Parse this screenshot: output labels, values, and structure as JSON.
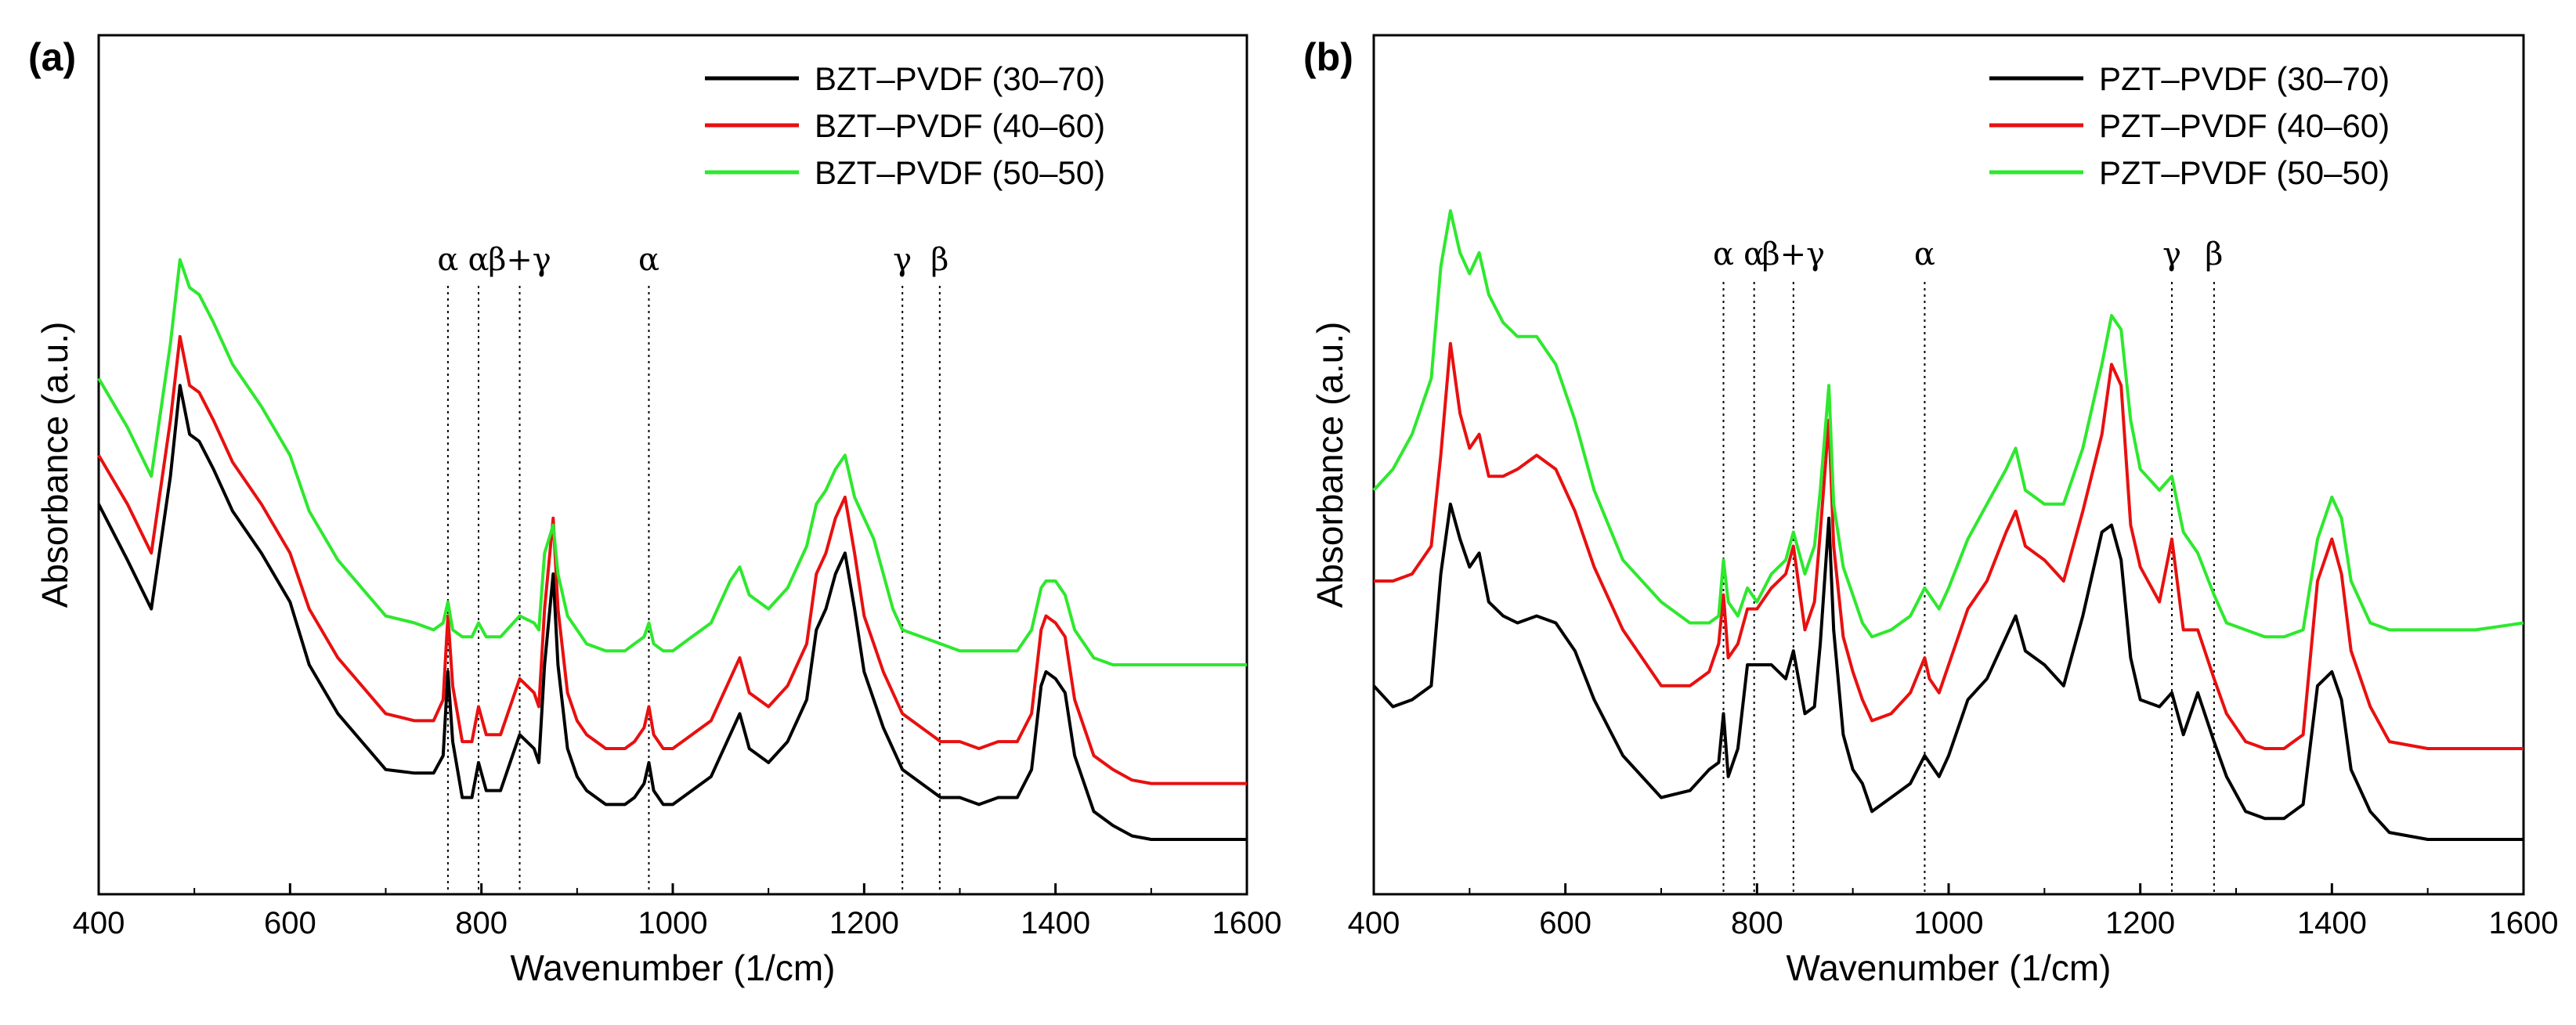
{
  "chart_data": [
    {
      "type": "line",
      "panel_label": "(a)",
      "xlabel": "Wavenumber (1/cm)",
      "ylabel": "Absorbance (a.u.)",
      "xlim": [
        400,
        1600
      ],
      "ylim": [
        0,
        100
      ],
      "x_ticks": [
        400,
        600,
        800,
        1000,
        1200,
        1400,
        1600
      ],
      "legend_position": "top-right",
      "annotations": [
        {
          "x": 765,
          "label": "α"
        },
        {
          "x": 797,
          "label": "α"
        },
        {
          "x": 840,
          "label": "β+γ"
        },
        {
          "x": 975,
          "label": "α"
        },
        {
          "x": 1240,
          "label": "γ"
        },
        {
          "x": 1279,
          "label": "β"
        }
      ],
      "series": [
        {
          "name": "BZT–PVDF (30–70)",
          "color": "#000000",
          "x": [
            400,
            430,
            455,
            475,
            485,
            495,
            505,
            520,
            540,
            570,
            600,
            620,
            650,
            700,
            730,
            750,
            760,
            765,
            770,
            780,
            790,
            797,
            805,
            820,
            840,
            855,
            860,
            866,
            875,
            880,
            890,
            900,
            910,
            930,
            950,
            960,
            970,
            975,
            980,
            990,
            1000,
            1020,
            1040,
            1060,
            1070,
            1080,
            1100,
            1120,
            1140,
            1150,
            1160,
            1170,
            1180,
            1190,
            1200,
            1210,
            1220,
            1230,
            1240,
            1260,
            1280,
            1300,
            1320,
            1340,
            1360,
            1375,
            1385,
            1390,
            1400,
            1410,
            1420,
            1430,
            1440,
            1460,
            1480,
            1500,
            1550,
            1600
          ],
          "y": [
            48,
            40,
            33,
            52,
            65,
            58,
            57,
            53,
            47,
            41,
            34,
            25,
            18,
            10,
            9.5,
            9.5,
            12,
            24,
            14,
            6,
            6,
            11,
            7,
            7,
            15,
            13,
            11,
            25,
            38,
            25,
            13,
            9,
            7,
            5,
            5,
            6,
            8,
            11,
            7,
            5,
            5,
            7,
            9,
            15,
            18,
            13,
            11,
            14,
            20,
            30,
            33,
            38,
            41,
            33,
            24,
            20,
            16,
            13,
            10,
            8,
            6,
            6,
            5,
            6,
            6,
            10,
            22,
            24,
            23,
            21,
            12,
            8,
            4,
            2,
            0.5,
            0,
            0,
            0
          ]
        },
        {
          "name": "BZT–PVDF (40–60)",
          "color": "#e81010",
          "x": [
            400,
            430,
            455,
            475,
            485,
            495,
            505,
            520,
            540,
            570,
            600,
            620,
            650,
            700,
            730,
            750,
            760,
            765,
            770,
            780,
            790,
            797,
            805,
            820,
            840,
            855,
            860,
            866,
            875,
            880,
            890,
            900,
            910,
            930,
            950,
            960,
            970,
            975,
            980,
            990,
            1000,
            1020,
            1040,
            1060,
            1070,
            1080,
            1100,
            1120,
            1140,
            1150,
            1160,
            1170,
            1180,
            1190,
            1200,
            1210,
            1220,
            1230,
            1240,
            1260,
            1280,
            1300,
            1320,
            1340,
            1360,
            1375,
            1385,
            1390,
            1400,
            1410,
            1420,
            1430,
            1440,
            1460,
            1480,
            1500,
            1550,
            1600
          ],
          "y": [
            55,
            48,
            41,
            60,
            72,
            65,
            64,
            60,
            54,
            48,
            41,
            33,
            26,
            18,
            17,
            17,
            20,
            32,
            22,
            14,
            14,
            19,
            15,
            15,
            23,
            21,
            19,
            33,
            46,
            33,
            21,
            17,
            15,
            13,
            13,
            14,
            16,
            19,
            15,
            13,
            13,
            15,
            17,
            23,
            26,
            21,
            19,
            22,
            28,
            38,
            41,
            46,
            49,
            41,
            32,
            28,
            24,
            21,
            18,
            16,
            14,
            14,
            13,
            14,
            14,
            18,
            30,
            32,
            31,
            29,
            20,
            16,
            12,
            10,
            8.5,
            8,
            8,
            8
          ]
        },
        {
          "name": "BZT–PVDF (50–50)",
          "color": "#2ee82e",
          "x": [
            400,
            430,
            455,
            475,
            485,
            495,
            505,
            520,
            540,
            570,
            600,
            620,
            650,
            700,
            730,
            750,
            760,
            765,
            770,
            780,
            790,
            797,
            805,
            820,
            840,
            855,
            860,
            866,
            875,
            880,
            890,
            900,
            910,
            930,
            950,
            960,
            970,
            975,
            980,
            990,
            1000,
            1020,
            1040,
            1060,
            1070,
            1080,
            1100,
            1120,
            1140,
            1150,
            1160,
            1170,
            1180,
            1190,
            1200,
            1210,
            1220,
            1230,
            1240,
            1260,
            1280,
            1300,
            1320,
            1340,
            1360,
            1375,
            1385,
            1390,
            1400,
            1410,
            1420,
            1430,
            1440,
            1460,
            1480,
            1500,
            1550,
            1600
          ],
          "y": [
            66,
            59,
            52,
            71,
            83,
            79,
            78,
            74,
            68,
            62,
            55,
            47,
            40,
            32,
            31,
            30,
            31,
            34,
            30,
            29,
            29,
            31,
            29,
            29,
            32,
            31,
            30,
            41,
            45,
            38,
            32,
            30,
            28,
            27,
            27,
            28,
            29,
            31,
            28,
            27,
            27,
            29,
            31,
            37,
            39,
            35,
            33,
            36,
            42,
            48,
            50,
            53,
            55,
            49,
            46,
            43,
            38,
            33,
            30,
            29,
            28,
            27,
            27,
            27,
            27,
            30,
            36,
            37,
            37,
            35,
            30,
            28,
            26,
            25,
            25,
            25,
            25,
            25
          ]
        }
      ]
    },
    {
      "type": "line",
      "panel_label": "(b)",
      "xlabel": "Wavenumber (1/cm)",
      "ylabel": "Absorbance (a.u.)",
      "xlim": [
        400,
        1600
      ],
      "ylim": [
        0,
        100
      ],
      "x_ticks": [
        400,
        600,
        800,
        1000,
        1200,
        1400,
        1600
      ],
      "legend_position": "top-right",
      "annotations": [
        {
          "x": 765,
          "label": "α"
        },
        {
          "x": 797,
          "label": "α"
        },
        {
          "x": 838,
          "label": "β+γ"
        },
        {
          "x": 975,
          "label": "α"
        },
        {
          "x": 1233,
          "label": "γ"
        },
        {
          "x": 1277,
          "label": "β"
        }
      ],
      "series": [
        {
          "name": "PZT–PVDF (30–70)",
          "color": "#000000",
          "x": [
            400,
            420,
            440,
            460,
            470,
            480,
            490,
            500,
            510,
            520,
            535,
            550,
            570,
            590,
            610,
            630,
            660,
            700,
            730,
            750,
            760,
            765,
            770,
            780,
            790,
            800,
            815,
            830,
            838,
            850,
            860,
            866,
            875,
            880,
            890,
            900,
            910,
            920,
            940,
            960,
            975,
            980,
            990,
            1000,
            1020,
            1040,
            1060,
            1070,
            1080,
            1100,
            1120,
            1140,
            1160,
            1170,
            1180,
            1190,
            1200,
            1220,
            1233,
            1245,
            1260,
            1277,
            1290,
            1310,
            1330,
            1350,
            1370,
            1385,
            1400,
            1410,
            1420,
            1440,
            1460,
            1500,
            1550,
            1600
          ],
          "y": [
            22,
            19,
            20,
            22,
            38,
            48,
            43,
            39,
            41,
            34,
            32,
            31,
            32,
            31,
            27,
            20,
            12,
            6,
            7,
            10,
            11,
            18,
            9,
            13,
            25,
            25,
            25,
            23,
            27,
            18,
            19,
            28,
            46,
            30,
            15,
            10,
            8,
            4,
            6,
            8,
            12,
            11,
            9,
            12,
            20,
            23,
            29,
            32,
            27,
            25,
            22,
            32,
            44,
            45,
            40,
            26,
            20,
            19,
            21,
            15,
            21,
            14,
            9,
            4,
            3,
            3,
            5,
            22,
            24,
            20,
            10,
            4,
            1,
            0,
            0,
            0
          ]
        },
        {
          "name": "PZT–PVDF (40–60)",
          "color": "#e81010",
          "x": [
            400,
            420,
            440,
            460,
            470,
            480,
            490,
            500,
            510,
            520,
            535,
            550,
            570,
            590,
            610,
            630,
            660,
            700,
            730,
            750,
            760,
            765,
            770,
            780,
            790,
            800,
            815,
            830,
            838,
            850,
            860,
            866,
            875,
            880,
            890,
            900,
            910,
            920,
            940,
            960,
            975,
            980,
            990,
            1000,
            1020,
            1040,
            1060,
            1070,
            1080,
            1100,
            1120,
            1140,
            1160,
            1170,
            1180,
            1190,
            1200,
            1220,
            1233,
            1245,
            1260,
            1277,
            1290,
            1310,
            1330,
            1350,
            1370,
            1385,
            1400,
            1410,
            1420,
            1440,
            1460,
            1500,
            1550,
            1600
          ],
          "y": [
            37,
            37,
            38,
            42,
            55,
            71,
            61,
            56,
            58,
            52,
            52,
            53,
            55,
            53,
            47,
            39,
            30,
            22,
            22,
            24,
            28,
            35,
            26,
            28,
            33,
            33,
            36,
            38,
            42,
            30,
            34,
            44,
            60,
            42,
            29,
            24,
            20,
            17,
            18,
            21,
            26,
            23,
            21,
            25,
            33,
            37,
            44,
            47,
            42,
            40,
            37,
            47,
            58,
            68,
            65,
            45,
            39,
            34,
            43,
            30,
            30,
            23,
            18,
            14,
            13,
            13,
            15,
            37,
            43,
            38,
            27,
            19,
            14,
            13,
            13,
            13
          ]
        },
        {
          "name": "PZT–PVDF (50–50)",
          "color": "#2ee82e",
          "x": [
            400,
            420,
            440,
            460,
            470,
            480,
            490,
            500,
            510,
            520,
            535,
            550,
            570,
            590,
            610,
            630,
            660,
            700,
            730,
            750,
            760,
            765,
            770,
            780,
            790,
            800,
            815,
            830,
            838,
            850,
            860,
            866,
            875,
            880,
            890,
            900,
            910,
            920,
            940,
            960,
            975,
            980,
            990,
            1000,
            1020,
            1040,
            1060,
            1070,
            1080,
            1100,
            1120,
            1140,
            1160,
            1170,
            1180,
            1190,
            1200,
            1220,
            1233,
            1245,
            1260,
            1277,
            1290,
            1310,
            1330,
            1350,
            1370,
            1385,
            1400,
            1410,
            1420,
            1440,
            1460,
            1500,
            1550,
            1600
          ],
          "y": [
            50,
            53,
            58,
            66,
            82,
            90,
            84,
            81,
            84,
            78,
            74,
            72,
            72,
            68,
            60,
            50,
            40,
            34,
            31,
            31,
            32,
            40,
            34,
            32,
            36,
            34,
            38,
            40,
            44,
            38,
            42,
            50,
            65,
            48,
            39,
            35,
            31,
            29,
            30,
            32,
            36,
            35,
            33,
            36,
            43,
            48,
            53,
            56,
            50,
            48,
            48,
            56,
            68,
            75,
            73,
            60,
            53,
            50,
            52,
            44,
            41,
            35,
            31,
            30,
            29,
            29,
            30,
            43,
            49,
            46,
            37,
            31,
            30,
            30,
            30,
            31
          ]
        }
      ]
    }
  ]
}
